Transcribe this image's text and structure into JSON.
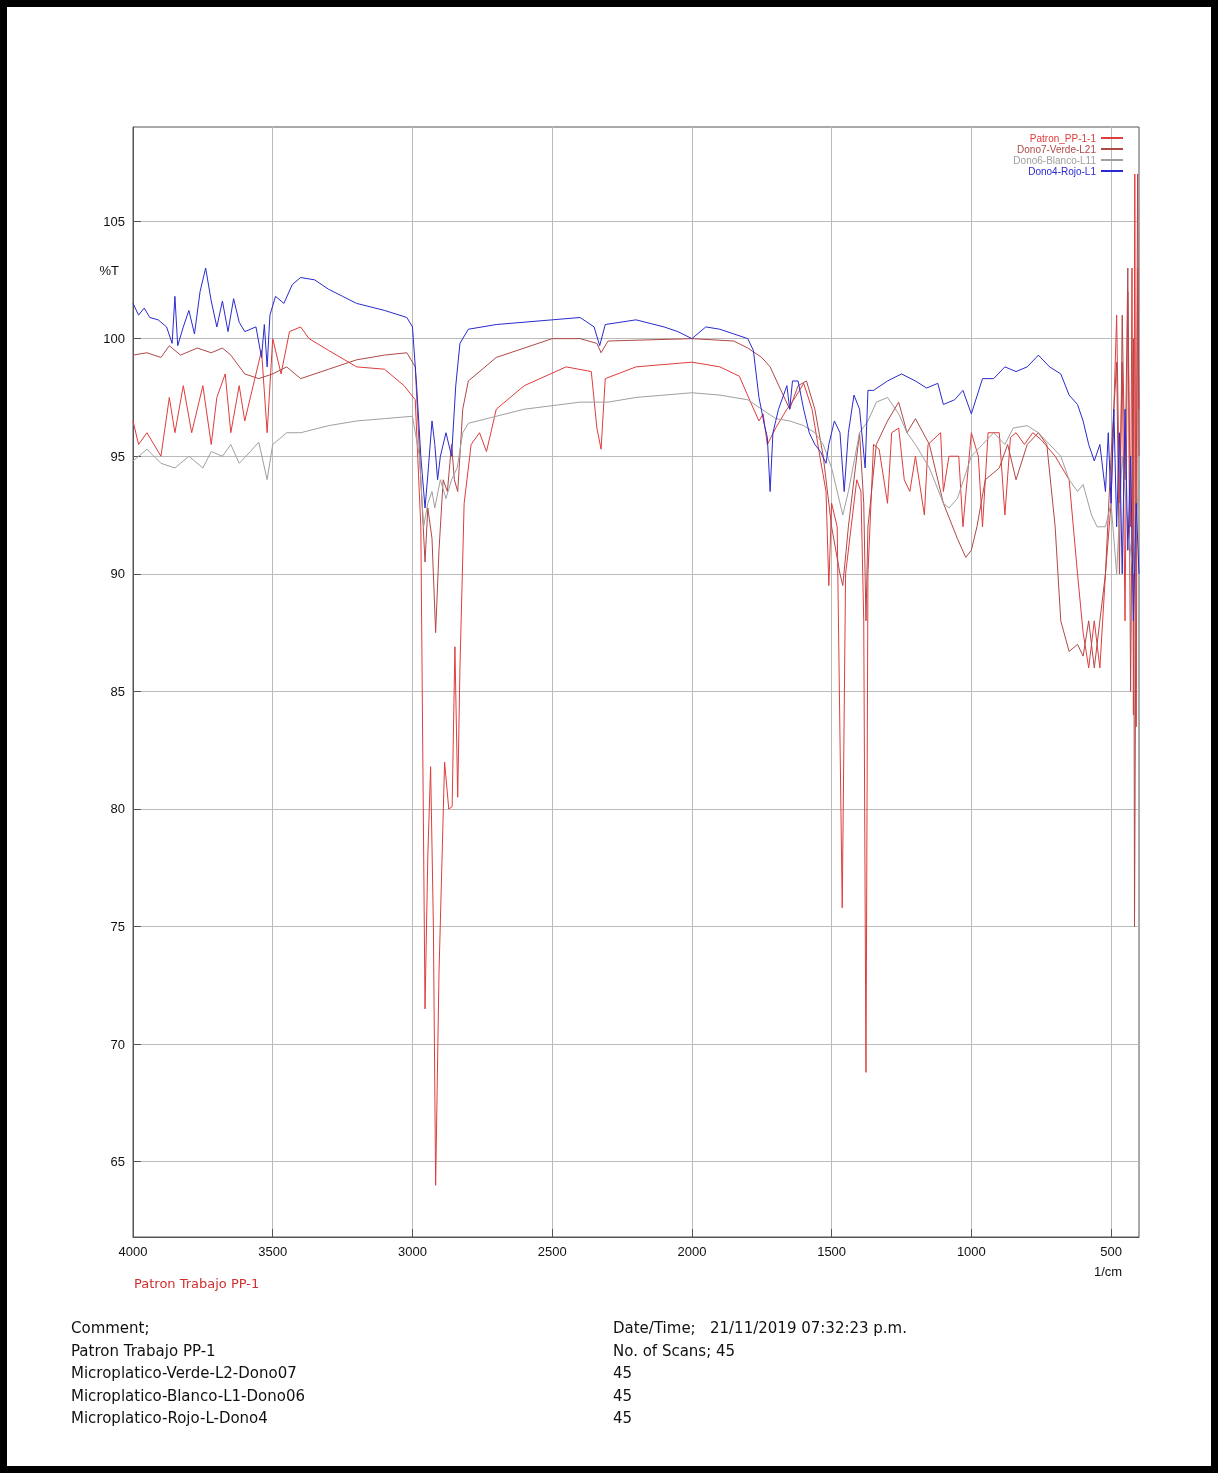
{
  "chart_data": {
    "type": "line",
    "xlabel": "1/cm",
    "ylabel": "%T",
    "xlim": [
      4000,
      400
    ],
    "ylim": [
      61.8,
      109
    ],
    "xticks": [
      4000,
      3500,
      3000,
      2500,
      2000,
      1500,
      1000,
      500
    ],
    "yticks": [
      65,
      70,
      75,
      80,
      85,
      90,
      95,
      100,
      105
    ],
    "grid": true,
    "legend": "top right",
    "annotations": [
      "Patron Trabajo PP-1",
      "Comment;",
      "Patron Trabajo PP-1",
      "Microplatico-Verde-L2-Dono07",
      "Microplatico-Blanco-L1-Dono06",
      "Microplatico-Rojo-L-Dono4",
      "Date/Time;   21/11/2019 07:32:23 p.m.",
      "No. of Scans; 45",
      "45",
      "45",
      "45"
    ],
    "series": [
      {
        "name": "Patron_PP-1-1",
        "color": "#e03c3c",
        "x": [
          4000,
          3980,
          3950,
          3900,
          3870,
          3850,
          3820,
          3790,
          3750,
          3720,
          3700,
          3670,
          3650,
          3620,
          3600,
          3570,
          3540,
          3520,
          3500,
          3470,
          3440,
          3400,
          3370,
          3300,
          3200,
          3100,
          3030,
          2990,
          2970,
          2955,
          2945,
          2935,
          2925,
          2917,
          2905,
          2885,
          2870,
          2858,
          2848,
          2838,
          2830,
          2815,
          2790,
          2760,
          2735,
          2700,
          2600,
          2450,
          2360,
          2340,
          2325,
          2310,
          2200,
          2000,
          1900,
          1830,
          1790,
          1760,
          1745,
          1730,
          1700,
          1660,
          1630,
          1600,
          1570,
          1545,
          1520,
          1510,
          1500,
          1480,
          1462,
          1450,
          1430,
          1410,
          1395,
          1385,
          1377,
          1370,
          1350,
          1330,
          1300,
          1285,
          1260,
          1240,
          1220,
          1200,
          1168,
          1155,
          1110,
          1100,
          1080,
          1045,
          1030,
          1000,
          975,
          960,
          940,
          900,
          880,
          860,
          840,
          810,
          780,
          750,
          700,
          650,
          620,
          600,
          580,
          560,
          540,
          520,
          500,
          480,
          470,
          460,
          450,
          440,
          430,
          425,
          420,
          415,
          410,
          405,
          400
        ],
        "values": [
          96.5,
          95.5,
          96,
          95,
          97.5,
          96,
          98,
          96,
          98,
          95.5,
          97.5,
          98.5,
          96,
          98,
          96.5,
          98,
          99.5,
          96,
          100,
          98.5,
          100.3,
          100.5,
          100,
          99.5,
          98.8,
          98.7,
          98,
          97.4,
          92,
          71.5,
          78,
          81.8,
          75,
          64,
          73,
          82,
          80,
          80.1,
          86.9,
          80.5,
          86,
          93,
          95.5,
          96,
          95.2,
          97,
          98,
          98.8,
          98.6,
          96.2,
          95.3,
          98.3,
          98.8,
          99,
          98.8,
          98.4,
          97.3,
          96.5,
          96.8,
          95.5,
          96.2,
          97,
          97.5,
          98.1,
          97,
          95.2,
          93.5,
          89.5,
          93,
          92,
          75.8,
          90,
          92,
          94,
          93.5,
          88,
          68.8,
          90,
          95.5,
          95.3,
          93,
          96,
          96.2,
          94,
          93.5,
          95,
          92.5,
          95.5,
          96,
          93.5,
          95,
          95,
          92,
          96,
          95,
          92,
          96,
          96,
          92.5,
          95.8,
          96,
          95.5,
          96,
          95.7,
          95,
          94,
          90,
          87.5,
          86,
          88,
          86,
          90,
          93,
          101,
          93,
          99,
          88,
          102,
          92,
          103,
          84,
          107,
          83.5,
          103,
          97
        ]
      },
      {
        "name": "Dono7-Verde-L21",
        "color": "#b04848",
        "x": [
          4000,
          3950,
          3900,
          3870,
          3830,
          3770,
          3720,
          3680,
          3650,
          3600,
          3550,
          3500,
          3450,
          3400,
          3300,
          3200,
          3100,
          3020,
          2990,
          2970,
          2955,
          2945,
          2930,
          2917,
          2905,
          2890,
          2875,
          2860,
          2850,
          2838,
          2820,
          2800,
          2700,
          2500,
          2400,
          2340,
          2325,
          2300,
          2000,
          1850,
          1800,
          1750,
          1720,
          1650,
          1620,
          1590,
          1560,
          1530,
          1500,
          1470,
          1460,
          1440,
          1420,
          1400,
          1385,
          1377,
          1370,
          1340,
          1300,
          1260,
          1230,
          1200,
          1150,
          1100,
          1050,
          1020,
          1000,
          980,
          950,
          900,
          870,
          840,
          800,
          760,
          730,
          700,
          680,
          650,
          620,
          600,
          580,
          560,
          540,
          520,
          500,
          480,
          470,
          460,
          450,
          440,
          430,
          420,
          416,
          405,
          400
        ],
        "values": [
          99.3,
          99.4,
          99.2,
          99.7,
          99.3,
          99.6,
          99.4,
          99.6,
          99.3,
          98.5,
          98.3,
          98.5,
          98.8,
          98.3,
          98.7,
          99.1,
          99.3,
          99.4,
          98.8,
          94,
          90.5,
          92.8,
          91.5,
          87.5,
          91,
          94,
          93.5,
          95.5,
          94,
          93.5,
          97,
          98.2,
          99.2,
          100,
          100,
          99.8,
          99.4,
          99.9,
          100,
          99.9,
          99.6,
          99.2,
          98.8,
          97,
          98,
          98.2,
          97,
          95,
          92,
          90,
          89.5,
          92,
          94,
          96,
          93,
          88,
          92,
          95.5,
          96.5,
          97.3,
          96,
          96.6,
          95.5,
          93,
          91.5,
          90.7,
          91,
          92,
          94,
          94.5,
          95.5,
          94,
          95.5,
          96,
          95.5,
          92,
          88,
          86.7,
          87,
          86.5,
          88,
          86,
          88,
          90,
          95,
          99,
          90,
          101,
          94,
          103,
          85,
          100,
          75,
          107,
          95
        ]
      },
      {
        "name": "Dono6-Blanco-L11",
        "color": "#a0a0a0",
        "x": [
          4000,
          3950,
          3900,
          3850,
          3800,
          3750,
          3720,
          3680,
          3650,
          3620,
          3580,
          3550,
          3520,
          3500,
          3450,
          3400,
          3300,
          3200,
          3100,
          3000,
          2975,
          2960,
          2945,
          2930,
          2920,
          2900,
          2880,
          2860,
          2840,
          2820,
          2800,
          2600,
          2400,
          2300,
          2200,
          2100,
          2000,
          1900,
          1800,
          1750,
          1700,
          1650,
          1600,
          1560,
          1530,
          1500,
          1470,
          1460,
          1440,
          1400,
          1370,
          1340,
          1300,
          1260,
          1230,
          1200,
          1150,
          1100,
          1080,
          1050,
          1000,
          960,
          920,
          880,
          850,
          800,
          760,
          720,
          680,
          650,
          620,
          600,
          570,
          550,
          520,
          500,
          480,
          460,
          440,
          420,
          400
        ],
        "values": [
          94.8,
          95.3,
          94.7,
          94.5,
          95,
          94.5,
          95.2,
          95,
          95.5,
          94.7,
          95.2,
          95.6,
          94,
          95.5,
          96,
          96,
          96.3,
          96.5,
          96.6,
          96.7,
          95,
          92,
          93,
          93.5,
          92.8,
          94,
          93.2,
          94,
          94.5,
          96,
          96.4,
          97,
          97.3,
          97.3,
          97.5,
          97.6,
          97.7,
          97.6,
          97.4,
          97,
          96.6,
          96.5,
          96.3,
          96,
          95.5,
          94.5,
          93,
          92.5,
          93.5,
          96,
          96.5,
          97.3,
          97.5,
          96.8,
          96,
          95.5,
          94.5,
          93,
          92.8,
          93.2,
          95,
          95.5,
          96,
          95.5,
          96.2,
          96.3,
          96,
          95.5,
          95,
          94,
          93.5,
          93.8,
          92.5,
          92,
          92,
          93,
          90,
          95,
          92,
          90,
          94
        ]
      },
      {
        "name": "Dono4-Rojo-L1",
        "color": "#2a2ad0",
        "x": [
          4000,
          3980,
          3960,
          3940,
          3910,
          3880,
          3860,
          3850,
          3840,
          3820,
          3800,
          3780,
          3760,
          3740,
          3720,
          3700,
          3680,
          3660,
          3640,
          3620,
          3600,
          3560,
          3540,
          3530,
          3520,
          3510,
          3490,
          3460,
          3430,
          3400,
          3350,
          3300,
          3250,
          3200,
          3100,
          3020,
          3000,
          2985,
          2970,
          2955,
          2945,
          2930,
          2920,
          2910,
          2900,
          2880,
          2860,
          2845,
          2830,
          2800,
          2700,
          2500,
          2400,
          2350,
          2330,
          2310,
          2200,
          2100,
          2050,
          2000,
          1950,
          1900,
          1850,
          1800,
          1780,
          1760,
          1740,
          1730,
          1720,
          1710,
          1690,
          1660,
          1650,
          1640,
          1620,
          1600,
          1580,
          1560,
          1540,
          1520,
          1510,
          1490,
          1470,
          1455,
          1440,
          1420,
          1400,
          1380,
          1370,
          1350,
          1300,
          1250,
          1200,
          1160,
          1120,
          1100,
          1060,
          1030,
          1000,
          960,
          920,
          880,
          840,
          800,
          760,
          720,
          680,
          650,
          620,
          600,
          580,
          560,
          540,
          520,
          510,
          500,
          490,
          480,
          470,
          460,
          450,
          440,
          430,
          420,
          410,
          400
        ],
        "values": [
          101.5,
          101,
          101.3,
          100.9,
          100.8,
          100.5,
          99.8,
          101.8,
          99.7,
          100.5,
          101.2,
          100.2,
          102,
          103,
          101.6,
          100.5,
          101.6,
          100.3,
          101.7,
          100.7,
          100.3,
          100.5,
          99.2,
          100.6,
          98.8,
          101,
          101.8,
          101.5,
          102.3,
          102.6,
          102.5,
          102.1,
          101.8,
          101.5,
          101.2,
          100.9,
          100.5,
          98,
          95,
          92.8,
          94.2,
          96.5,
          95.5,
          94,
          95,
          96,
          95,
          98,
          99.8,
          100.4,
          100.6,
          100.8,
          100.9,
          100.5,
          99.7,
          100.6,
          100.8,
          100.5,
          100.3,
          100,
          100.5,
          100.4,
          100.2,
          100,
          99.5,
          97.5,
          96.3,
          95.8,
          93.5,
          96,
          97,
          98,
          97,
          98.2,
          98.2,
          97,
          96,
          95.5,
          95.2,
          94.7,
          95.5,
          96.5,
          96,
          93.5,
          96,
          97.6,
          97,
          94.5,
          97.8,
          97.8,
          98.2,
          98.5,
          98.2,
          97.9,
          98.1,
          97.2,
          97.4,
          97.8,
          96.8,
          98.3,
          98.3,
          98.8,
          98.6,
          98.8,
          99.3,
          98.8,
          98.5,
          97.6,
          97.2,
          96.5,
          95.5,
          94.8,
          95.5,
          93.5,
          96,
          93,
          97,
          92,
          96,
          90,
          97,
          91,
          95,
          88,
          93,
          90
        ]
      }
    ]
  }
}
